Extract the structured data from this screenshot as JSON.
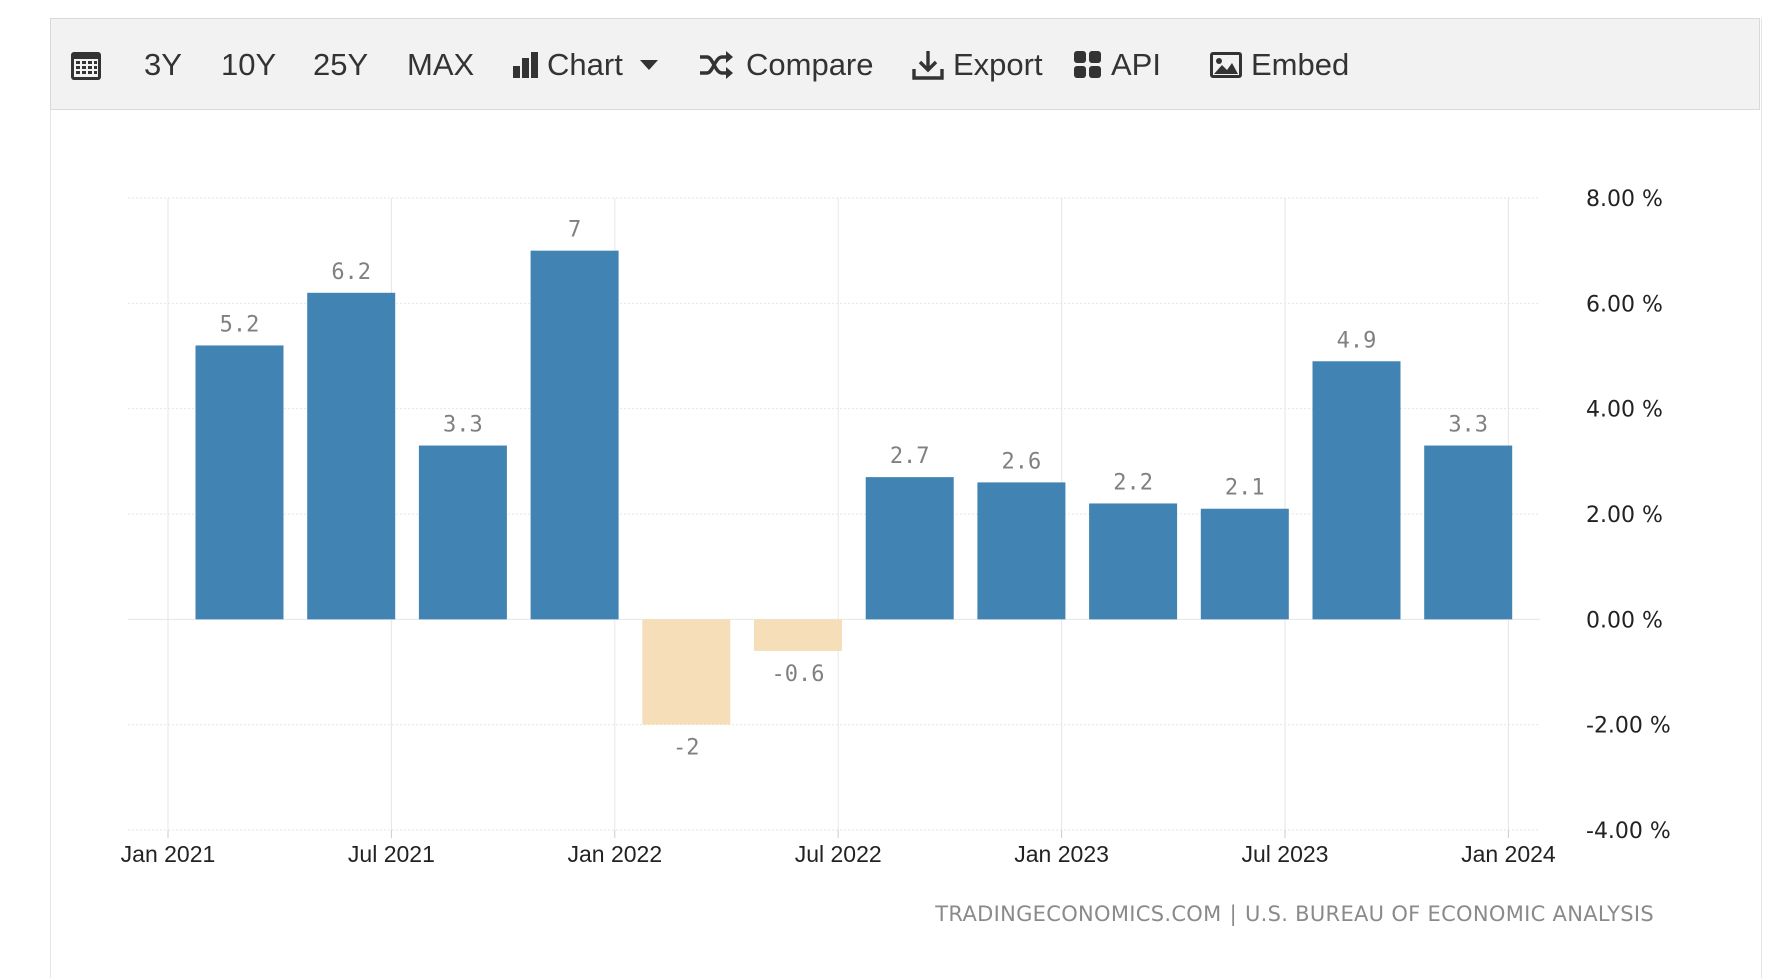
{
  "toolbar": {
    "items": [
      {
        "label": "",
        "icon": "calendar-icon"
      },
      {
        "label": "3Y"
      },
      {
        "label": "10Y"
      },
      {
        "label": "25Y"
      },
      {
        "label": "MAX"
      },
      {
        "label": "Chart",
        "icon": "bar-chart-icon",
        "caret": "chevron-down-icon"
      },
      {
        "label": "Compare",
        "icon": "shuffle-icon"
      },
      {
        "label": "Export",
        "icon": "download-icon"
      },
      {
        "label": "API",
        "icon": "grid-icon"
      },
      {
        "label": "Embed",
        "icon": "image-icon"
      }
    ]
  },
  "source": {
    "left": "TRADINGECONOMICS.COM",
    "separator": "|",
    "right": "U.S. BUREAU OF ECONOMIC ANALYSIS"
  },
  "colors": {
    "positive_bar": "#4183b2",
    "negative_bar": "#f6dfb8",
    "grid": "#e6e6e6",
    "label": "#808080",
    "axis_text": "#222222"
  },
  "chart_data": {
    "type": "bar",
    "categories": [
      "2021 Q1",
      "2021 Q2",
      "2021 Q3",
      "2021 Q4",
      "2022 Q1",
      "2022 Q2",
      "2022 Q3",
      "2022 Q4",
      "2023 Q1",
      "2023 Q2",
      "2023 Q3",
      "2023 Q4"
    ],
    "values": [
      5.2,
      6.2,
      3.3,
      7,
      -2,
      -0.6,
      2.7,
      2.6,
      2.2,
      2.1,
      4.9,
      3.3
    ],
    "value_labels": [
      "5.2",
      "6.2",
      "3.3",
      "7",
      "-2",
      "-0.6",
      "2.7",
      "2.6",
      "2.2",
      "2.1",
      "4.9",
      "3.3"
    ],
    "x_tick_labels": [
      "Jan 2021",
      "Jul 2021",
      "Jan 2022",
      "Jul 2022",
      "Jan 2023",
      "Jul 2023",
      "Jan 2024"
    ],
    "y_ticks": [
      8,
      6,
      4,
      2,
      0,
      -2,
      -4
    ],
    "y_tick_labels": [
      "8.00 %",
      "6.00 %",
      "4.00 %",
      "2.00 %",
      "0.00 %",
      "-2.00 %",
      "-4.00 %"
    ],
    "ylim": [
      -4,
      8
    ],
    "grid": true,
    "legend": "none"
  }
}
